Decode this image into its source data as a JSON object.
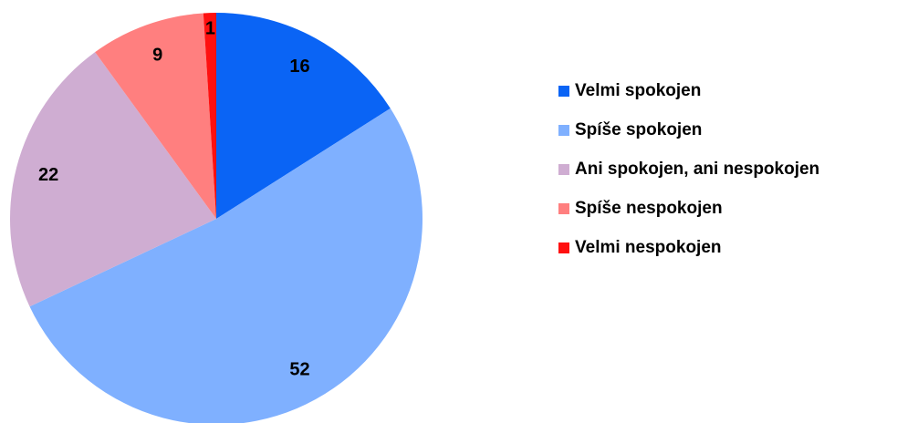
{
  "chart_data": {
    "type": "pie",
    "categories": [
      "Velmi spokojen",
      "Spíše spokojen",
      "Ani spokojen, ani nespokojen",
      "Spíše nespokojen",
      "Velmi nespokojen"
    ],
    "values": [
      16,
      52,
      22,
      9,
      1
    ],
    "colors": [
      "#0a64f5",
      "#7fb0ff",
      "#cfadd2",
      "#ff7f7f",
      "#ff1010"
    ],
    "legend": "right"
  }
}
